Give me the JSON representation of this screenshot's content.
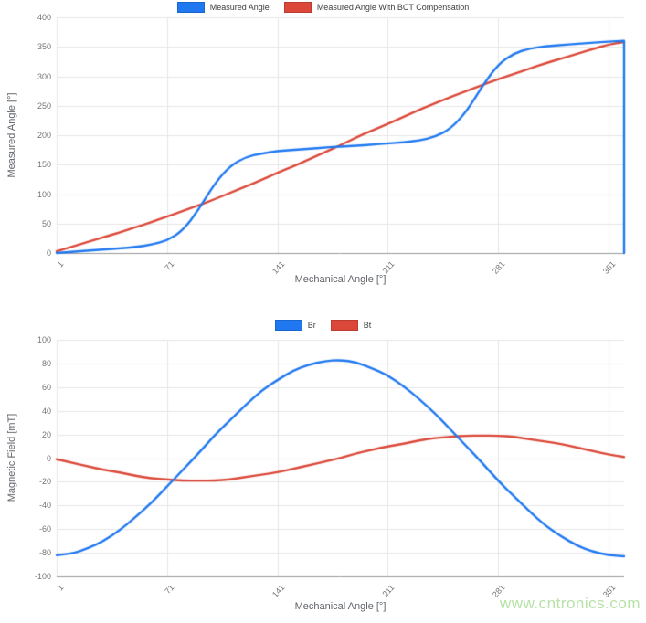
{
  "page": {
    "watermark": "www.cntronics.com",
    "watermark_color": "#a9dd97",
    "background": "#ffffff"
  },
  "chart_data": [
    {
      "id": "measured-angle-chart",
      "type": "line",
      "title": "",
      "xlabel": "Mechanical Angle [°]",
      "ylabel": "Measured Angle [°]",
      "xlim": [
        1,
        361
      ],
      "ylim": [
        0,
        400
      ],
      "x_ticks": [
        1,
        71,
        141,
        211,
        281,
        351
      ],
      "y_ticks": [
        0,
        50,
        100,
        150,
        200,
        250,
        300,
        350,
        400
      ],
      "grid": true,
      "legend_position": "top-center",
      "x": [
        1,
        11,
        21,
        31,
        41,
        51,
        61,
        71,
        81,
        91,
        101,
        111,
        121,
        131,
        141,
        151,
        161,
        171,
        181,
        191,
        201,
        211,
        221,
        231,
        241,
        251,
        261,
        271,
        281,
        291,
        301,
        311,
        321,
        331,
        341,
        351,
        361
      ],
      "series": [
        {
          "name": "Measured Angle",
          "color": "#1f78f0",
          "values": [
            0,
            2,
            4,
            6,
            8,
            10,
            14,
            21,
            38,
            73,
            117,
            148,
            163,
            169,
            173,
            175,
            177,
            179,
            181,
            182,
            184,
            186,
            188,
            191,
            197,
            211,
            240,
            283,
            320,
            339,
            347,
            351,
            353,
            355,
            357,
            359,
            360
          ],
          "end_drop_to": 0
        },
        {
          "name": "Measured Angle With BCT Compensation",
          "color": "#db4839",
          "values": [
            3,
            11,
            19,
            27,
            35,
            44,
            52,
            62,
            71,
            81,
            91,
            102,
            113,
            124,
            136,
            147,
            159,
            171,
            183,
            196,
            208,
            219,
            231,
            243,
            254,
            265,
            275,
            285,
            295,
            304,
            313,
            322,
            330,
            338,
            346,
            354,
            358
          ]
        }
      ]
    },
    {
      "id": "magnetic-field-chart",
      "type": "line",
      "title": "",
      "xlabel": "Mechanical Angle [°]",
      "ylabel": "Magnetic Field [mT]",
      "xlim": [
        1,
        361
      ],
      "ylim": [
        -100,
        100
      ],
      "x_ticks": [
        1,
        71,
        141,
        211,
        281,
        351
      ],
      "y_ticks": [
        -100,
        -80,
        -60,
        -40,
        -20,
        0,
        20,
        40,
        60,
        80,
        100
      ],
      "grid": true,
      "legend_position": "top-center",
      "x": [
        1,
        11,
        21,
        31,
        41,
        51,
        61,
        71,
        81,
        91,
        101,
        111,
        121,
        131,
        141,
        151,
        161,
        171,
        181,
        191,
        201,
        211,
        221,
        231,
        241,
        251,
        261,
        271,
        281,
        291,
        301,
        311,
        321,
        331,
        341,
        351,
        361
      ],
      "series": [
        {
          "name": "Br",
          "color": "#1f78f0",
          "values": [
            -82,
            -81,
            -76,
            -70,
            -61,
            -50,
            -38,
            -24,
            -10,
            4,
            19,
            32,
            45,
            57,
            66,
            74,
            79,
            82,
            83,
            81,
            76,
            70,
            61,
            50,
            38,
            24,
            10,
            -4,
            -19,
            -32,
            -45,
            -57,
            -66,
            -74,
            -79,
            -82,
            -83
          ]
        },
        {
          "name": "Bt",
          "color": "#db4839",
          "values": [
            -1,
            -4,
            -7,
            -10,
            -12,
            -15,
            -17,
            -18,
            -19,
            -19,
            -19,
            -18,
            -16,
            -14,
            -12,
            -9,
            -6,
            -3,
            0,
            4,
            7,
            10,
            12,
            15,
            17,
            18,
            19,
            19,
            19,
            18,
            16,
            14,
            12,
            9,
            6,
            3,
            1
          ]
        }
      ]
    }
  ]
}
